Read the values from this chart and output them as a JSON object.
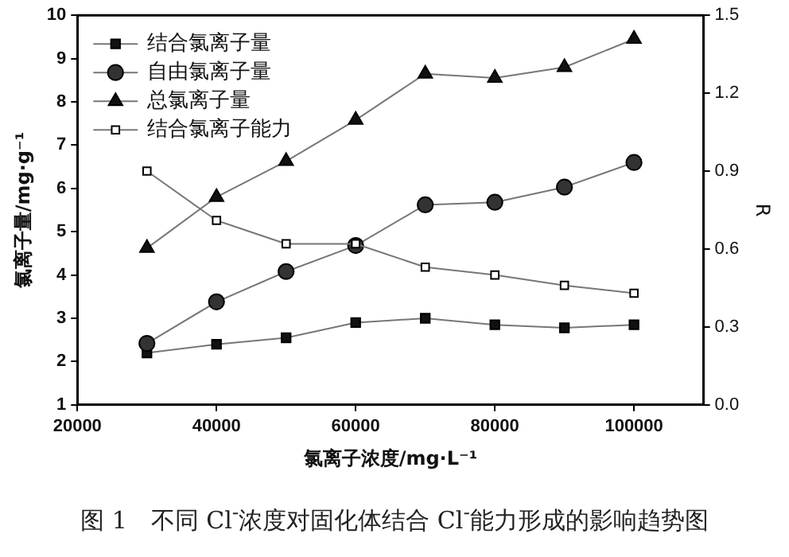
{
  "chart_data": {
    "type": "line",
    "xlabel": "氯离子浓度/mg·L⁻¹",
    "ylabel": "氯离子量/mg·g⁻¹",
    "y2label": "R",
    "x": [
      30000,
      40000,
      50000,
      60000,
      70000,
      80000,
      90000,
      100000
    ],
    "xlim": [
      20000,
      110000
    ],
    "xticks": [
      20000,
      40000,
      60000,
      80000,
      100000
    ],
    "ylim": [
      1,
      10
    ],
    "yticks": [
      1,
      2,
      3,
      4,
      5,
      6,
      7,
      8,
      9,
      10
    ],
    "y2lim": [
      0,
      1.5
    ],
    "y2ticks": [
      {
        "value": 0,
        "label": "0.0"
      },
      0.3,
      0.6,
      0.9,
      1.2,
      1.5
    ],
    "grid": false,
    "legend": "top left",
    "line_style": "solid",
    "series": [
      {
        "name": "结合氯离子量",
        "color": "#111111",
        "marker": "square",
        "values": [
          2.2,
          2.4,
          2.55,
          2.9,
          3.0,
          2.85,
          2.78,
          2.85
        ]
      },
      {
        "name": "自由氯离子量",
        "color": "#333333",
        "marker": "circle",
        "values": [
          2.42,
          3.38,
          4.08,
          4.68,
          5.62,
          5.68,
          6.03,
          6.6
        ]
      },
      {
        "name": "总氯离子量",
        "color": "#111111",
        "marker": "triangle",
        "values": [
          4.62,
          5.8,
          6.63,
          7.58,
          8.65,
          8.55,
          8.8,
          9.45
        ]
      },
      {
        "name": "结合氯离子能力",
        "color": "#ffffff",
        "marker": "square",
        "axis": "y2",
        "values": [
          0.9,
          0.71,
          0.62,
          0.62,
          0.53,
          0.5,
          0.46,
          0.43
        ]
      }
    ],
    "annotations": [
      "图 1　不同 Cl$^{-}$浓度对固化体结合 Cl$^{-}$能力形成的影响趋势图"
    ]
  }
}
